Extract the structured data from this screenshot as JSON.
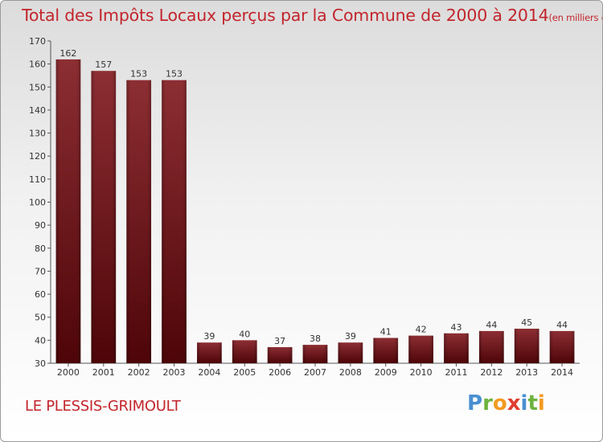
{
  "title": {
    "main": "Total des Impôts Locaux perçus par la Commune de 2000 à 2014",
    "unit": "(en milliers d'€)"
  },
  "commune": "LE PLESSIS-GRIMOULT",
  "logo": {
    "letters": [
      "P",
      "r",
      "o",
      "x",
      "i",
      "t",
      "i"
    ],
    "colors": [
      "#4a8fd1",
      "#6db33f",
      "#f29a1f",
      "#e03c31",
      "#4a8fd1",
      "#6db33f",
      "#f29a1f"
    ]
  },
  "chart_data": {
    "type": "bar",
    "categories": [
      "2000",
      "2001",
      "2002",
      "2003",
      "2004",
      "2005",
      "2006",
      "2007",
      "2008",
      "2009",
      "2010",
      "2011",
      "2012",
      "2013",
      "2014"
    ],
    "values": [
      162,
      157,
      153,
      153,
      39,
      40,
      37,
      38,
      39,
      41,
      42,
      43,
      44,
      45,
      44
    ],
    "title": "Total des Impôts Locaux perçus par la Commune de 2000 à 2014",
    "xlabel": "",
    "ylabel": "",
    "ylim": [
      30,
      170
    ],
    "yticks": [
      30,
      40,
      50,
      60,
      70,
      80,
      90,
      100,
      110,
      120,
      130,
      140,
      150,
      160,
      170
    ],
    "grid": false,
    "bar_color": "#7a1f22",
    "label_color": "#333333"
  }
}
